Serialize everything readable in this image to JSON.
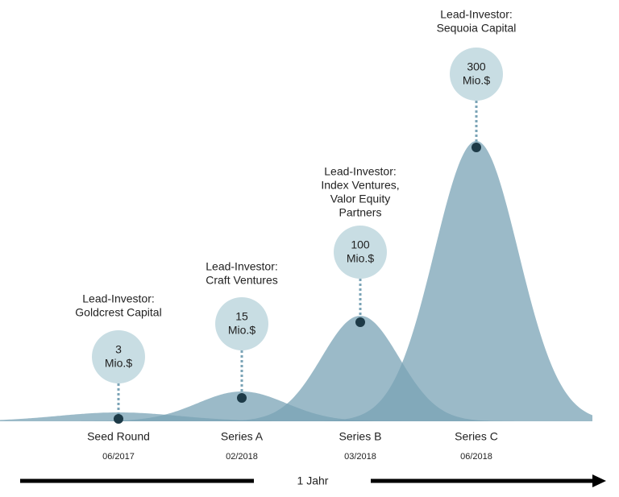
{
  "rounds": [
    {
      "lead_label": "Lead-Investor:",
      "investor_lines": [
        "Goldcrest Capital"
      ],
      "amount": "3",
      "unit": "Mio.$",
      "name": "Seed Round",
      "date": "06/2017"
    },
    {
      "lead_label": "Lead-Investor:",
      "investor_lines": [
        "Craft Ventures"
      ],
      "amount": "15",
      "unit": "Mio.$",
      "name": "Series A",
      "date": "02/2018"
    },
    {
      "lead_label": "Lead-Investor:",
      "investor_lines": [
        "Index Ventures,",
        "Valor Equity",
        "Partners"
      ],
      "amount": "100",
      "unit": "Mio.$",
      "name": "Series B",
      "date": "03/2018"
    },
    {
      "lead_label": "Lead-Investor:",
      "investor_lines": [
        "Sequoia Capital"
      ],
      "amount": "300",
      "unit": "Mio.$",
      "name": "Series C",
      "date": "06/2018"
    }
  ],
  "timeline": {
    "label": "1 Jahr"
  }
}
